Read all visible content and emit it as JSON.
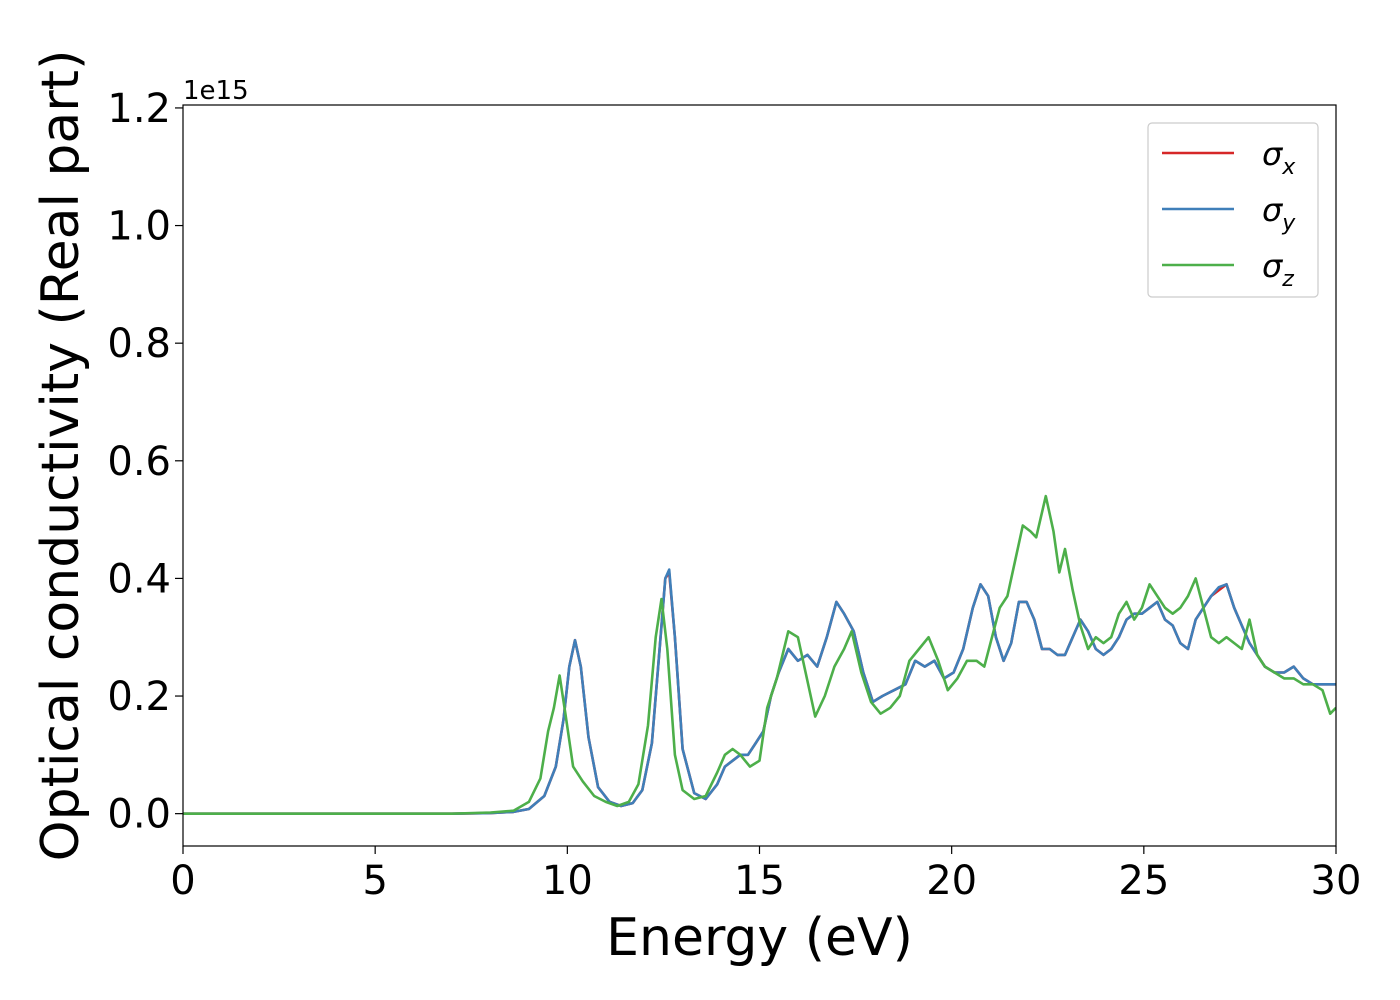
{
  "chart_data": {
    "type": "line",
    "title": "",
    "xlabel": "Energy (eV)",
    "ylabel": "Optical conductivity (Real part)",
    "y_offset_label": "1e15",
    "xlim": [
      0,
      30
    ],
    "ylim": [
      -0.055,
      1.205
    ],
    "x_ticks": [
      0,
      5,
      10,
      15,
      20,
      25,
      30
    ],
    "x_tick_labels": [
      "0",
      "5",
      "10",
      "15",
      "20",
      "25",
      "30"
    ],
    "y_ticks": [
      0.0,
      0.2,
      0.4,
      0.6,
      0.8,
      1.0,
      1.2
    ],
    "y_tick_labels": [
      "0.0",
      "0.2",
      "0.4",
      "0.6",
      "0.8",
      "1.0",
      "1.2"
    ],
    "grid": false,
    "legend_position": "top-right",
    "series": [
      {
        "name": "σx",
        "legend_symbol": "σ",
        "legend_subscript": "x",
        "color": "#d62728",
        "x": [
          0,
          7,
          8,
          8.6,
          9.0,
          9.4,
          9.7,
          9.9,
          10.05,
          10.2,
          10.35,
          10.55,
          10.8,
          11.1,
          11.4,
          11.7,
          11.95,
          12.2,
          12.4,
          12.55,
          12.65,
          12.8,
          13.0,
          13.3,
          13.6,
          13.9,
          14.1,
          14.3,
          14.5,
          14.7,
          14.9,
          15.1,
          15.3,
          15.5,
          15.75,
          16.0,
          16.25,
          16.5,
          16.75,
          17.0,
          17.2,
          17.45,
          17.7,
          17.95,
          18.2,
          18.5,
          18.8,
          19.05,
          19.3,
          19.55,
          19.8,
          20.05,
          20.3,
          20.55,
          20.75,
          20.95,
          21.15,
          21.35,
          21.55,
          21.75,
          21.95,
          22.15,
          22.35,
          22.55,
          22.75,
          22.95,
          23.15,
          23.35,
          23.55,
          23.75,
          23.95,
          24.15,
          24.35,
          24.55,
          24.75,
          24.95,
          25.15,
          25.35,
          25.55,
          25.75,
          25.95,
          26.15,
          26.35,
          26.55,
          26.75,
          26.95,
          27.15,
          27.35,
          27.55,
          27.75,
          27.95,
          28.15,
          28.4,
          28.65,
          28.9,
          29.15,
          29.4,
          29.65,
          29.85,
          30.0
        ],
        "y": [
          0.0,
          0.0,
          0.001,
          0.003,
          0.008,
          0.03,
          0.08,
          0.16,
          0.25,
          0.295,
          0.25,
          0.13,
          0.045,
          0.02,
          0.013,
          0.018,
          0.04,
          0.12,
          0.28,
          0.4,
          0.41,
          0.3,
          0.11,
          0.035,
          0.025,
          0.05,
          0.08,
          0.09,
          0.1,
          0.1,
          0.12,
          0.14,
          0.2,
          0.24,
          0.28,
          0.26,
          0.27,
          0.25,
          0.3,
          0.36,
          0.34,
          0.31,
          0.24,
          0.19,
          0.2,
          0.21,
          0.22,
          0.26,
          0.25,
          0.26,
          0.23,
          0.24,
          0.28,
          0.35,
          0.39,
          0.37,
          0.3,
          0.26,
          0.29,
          0.36,
          0.36,
          0.33,
          0.28,
          0.28,
          0.27,
          0.27,
          0.3,
          0.33,
          0.31,
          0.28,
          0.27,
          0.28,
          0.3,
          0.33,
          0.34,
          0.34,
          0.35,
          0.36,
          0.33,
          0.32,
          0.29,
          0.28,
          0.33,
          0.35,
          0.37,
          0.38,
          0.39,
          0.35,
          0.32,
          0.29,
          0.27,
          0.25,
          0.24,
          0.24,
          0.25,
          0.23,
          0.22,
          0.22,
          0.22,
          0.22
        ]
      },
      {
        "name": "σy",
        "legend_symbol": "σ",
        "legend_subscript": "y",
        "color": "#3f7fb9",
        "x": [
          0,
          7,
          8,
          8.6,
          9.0,
          9.4,
          9.7,
          9.9,
          10.05,
          10.2,
          10.35,
          10.55,
          10.8,
          11.1,
          11.4,
          11.7,
          11.95,
          12.2,
          12.4,
          12.55,
          12.65,
          12.8,
          13.0,
          13.3,
          13.6,
          13.9,
          14.1,
          14.3,
          14.5,
          14.7,
          14.9,
          15.1,
          15.3,
          15.5,
          15.75,
          16.0,
          16.25,
          16.5,
          16.75,
          17.0,
          17.2,
          17.45,
          17.7,
          17.95,
          18.2,
          18.5,
          18.8,
          19.05,
          19.3,
          19.55,
          19.8,
          20.05,
          20.3,
          20.55,
          20.75,
          20.95,
          21.15,
          21.35,
          21.55,
          21.75,
          21.95,
          22.15,
          22.35,
          22.55,
          22.75,
          22.95,
          23.15,
          23.35,
          23.55,
          23.75,
          23.95,
          24.15,
          24.35,
          24.55,
          24.75,
          24.95,
          25.15,
          25.35,
          25.55,
          25.75,
          25.95,
          26.15,
          26.35,
          26.55,
          26.75,
          26.95,
          27.15,
          27.35,
          27.55,
          27.75,
          27.95,
          28.15,
          28.4,
          28.65,
          28.9,
          29.15,
          29.4,
          29.65,
          29.85,
          30.0
        ],
        "y": [
          0.0,
          0.0,
          0.001,
          0.003,
          0.008,
          0.03,
          0.08,
          0.16,
          0.25,
          0.295,
          0.25,
          0.13,
          0.045,
          0.02,
          0.013,
          0.018,
          0.04,
          0.12,
          0.28,
          0.4,
          0.415,
          0.3,
          0.11,
          0.035,
          0.025,
          0.05,
          0.08,
          0.09,
          0.1,
          0.1,
          0.12,
          0.14,
          0.2,
          0.24,
          0.28,
          0.26,
          0.27,
          0.25,
          0.3,
          0.36,
          0.34,
          0.31,
          0.24,
          0.19,
          0.2,
          0.21,
          0.22,
          0.26,
          0.25,
          0.26,
          0.23,
          0.24,
          0.28,
          0.35,
          0.39,
          0.37,
          0.3,
          0.26,
          0.29,
          0.36,
          0.36,
          0.33,
          0.28,
          0.28,
          0.27,
          0.27,
          0.3,
          0.33,
          0.31,
          0.28,
          0.27,
          0.28,
          0.3,
          0.33,
          0.34,
          0.34,
          0.35,
          0.36,
          0.33,
          0.32,
          0.29,
          0.28,
          0.33,
          0.35,
          0.37,
          0.385,
          0.39,
          0.35,
          0.32,
          0.29,
          0.27,
          0.25,
          0.24,
          0.24,
          0.25,
          0.23,
          0.22,
          0.22,
          0.22,
          0.22
        ]
      },
      {
        "name": "σz",
        "legend_symbol": "σ",
        "legend_subscript": "z",
        "color": "#4daf4a",
        "x": [
          0,
          7,
          8,
          8.6,
          9.0,
          9.3,
          9.5,
          9.65,
          9.8,
          9.95,
          10.15,
          10.4,
          10.7,
          11.0,
          11.3,
          11.6,
          11.85,
          12.1,
          12.3,
          12.45,
          12.6,
          12.8,
          13.0,
          13.3,
          13.6,
          13.9,
          14.1,
          14.3,
          14.5,
          14.75,
          15.0,
          15.2,
          15.45,
          15.75,
          16.0,
          16.2,
          16.45,
          16.7,
          16.95,
          17.2,
          17.4,
          17.65,
          17.9,
          18.15,
          18.4,
          18.65,
          18.9,
          19.15,
          19.4,
          19.65,
          19.9,
          20.15,
          20.4,
          20.65,
          20.85,
          21.05,
          21.25,
          21.45,
          21.65,
          21.85,
          22.05,
          22.2,
          22.45,
          22.65,
          22.8,
          22.95,
          23.15,
          23.35,
          23.55,
          23.75,
          23.95,
          24.15,
          24.35,
          24.55,
          24.75,
          24.95,
          25.15,
          25.35,
          25.55,
          25.75,
          25.95,
          26.15,
          26.35,
          26.55,
          26.75,
          26.95,
          27.15,
          27.35,
          27.55,
          27.75,
          27.95,
          28.15,
          28.4,
          28.65,
          28.9,
          29.15,
          29.4,
          29.65,
          29.85,
          30.0
        ],
        "y": [
          0.0,
          0.0,
          0.002,
          0.005,
          0.02,
          0.06,
          0.14,
          0.18,
          0.235,
          0.17,
          0.08,
          0.055,
          0.03,
          0.02,
          0.013,
          0.02,
          0.05,
          0.15,
          0.3,
          0.365,
          0.28,
          0.1,
          0.04,
          0.025,
          0.03,
          0.07,
          0.1,
          0.11,
          0.1,
          0.08,
          0.09,
          0.18,
          0.23,
          0.31,
          0.3,
          0.24,
          0.165,
          0.2,
          0.25,
          0.28,
          0.31,
          0.24,
          0.19,
          0.17,
          0.18,
          0.2,
          0.26,
          0.28,
          0.3,
          0.26,
          0.21,
          0.23,
          0.26,
          0.26,
          0.25,
          0.3,
          0.35,
          0.37,
          0.43,
          0.49,
          0.48,
          0.47,
          0.54,
          0.48,
          0.41,
          0.45,
          0.38,
          0.32,
          0.28,
          0.3,
          0.29,
          0.3,
          0.34,
          0.36,
          0.33,
          0.35,
          0.39,
          0.37,
          0.35,
          0.34,
          0.35,
          0.37,
          0.4,
          0.35,
          0.3,
          0.29,
          0.3,
          0.29,
          0.28,
          0.33,
          0.27,
          0.25,
          0.24,
          0.23,
          0.23,
          0.22,
          0.22,
          0.21,
          0.17,
          0.18
        ]
      }
    ]
  }
}
